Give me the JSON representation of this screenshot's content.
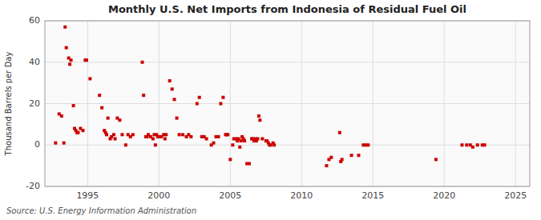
{
  "chart_data": {
    "type": "scatter",
    "title": "Monthly U.S. Net Imports from Indonesia of Residual Fuel Oil",
    "y_label": "Thousand Barrels per Day",
    "annotations": [
      "Source: U.S. Energy Information Administration"
    ],
    "color": "#cc0000",
    "marker": "square",
    "grid": true,
    "xlim": [
      1992.0,
      2026.0
    ],
    "ylim": [
      -20,
      60
    ],
    "xticks": [
      1995,
      2000,
      2005,
      2010,
      2015,
      2020,
      2025
    ],
    "yticks": [
      -20,
      0,
      20,
      40,
      60
    ],
    "x": [
      1992.75,
      1993.0,
      1993.17,
      1993.33,
      1993.42,
      1993.5,
      1993.67,
      1993.75,
      1993.83,
      1994.0,
      1994.08,
      1994.17,
      1994.25,
      1994.33,
      1994.5,
      1994.67,
      1994.83,
      1994.92,
      1995.17,
      1995.83,
      1996.0,
      1996.17,
      1996.25,
      1996.33,
      1996.42,
      1996.58,
      1996.67,
      1996.83,
      1996.92,
      1997.08,
      1997.25,
      1997.42,
      1997.67,
      1997.83,
      1998.0,
      1998.17,
      1998.83,
      1998.92,
      1999.08,
      1999.17,
      1999.25,
      1999.42,
      1999.58,
      1999.67,
      1999.75,
      1999.83,
      1999.92,
      2000.0,
      2000.17,
      2000.33,
      2000.42,
      2000.5,
      2000.75,
      2000.92,
      2001.08,
      2001.25,
      2001.42,
      2001.67,
      2001.92,
      2002.08,
      2002.25,
      2002.67,
      2002.83,
      2003.0,
      2003.17,
      2003.33,
      2003.67,
      2003.83,
      2004.0,
      2004.17,
      2004.33,
      2004.5,
      2004.67,
      2004.75,
      2004.83,
      2005.0,
      2005.17,
      2005.25,
      2005.42,
      2005.5,
      2005.58,
      2005.67,
      2005.75,
      2005.83,
      2005.92,
      2006.0,
      2006.17,
      2006.33,
      2006.5,
      2006.58,
      2006.67,
      2006.75,
      2006.83,
      2006.92,
      2007.0,
      2007.08,
      2007.25,
      2007.5,
      2007.58,
      2007.67,
      2007.75,
      2007.83,
      2008.0,
      2008.08,
      2011.75,
      2011.92,
      2012.08,
      2012.67,
      2012.75,
      2012.83,
      2013.5,
      2014.0,
      2014.33,
      2014.5,
      2014.67,
      2019.42,
      2021.25,
      2021.58,
      2021.83,
      2022.0,
      2022.33,
      2022.67,
      2022.83
    ],
    "values": [
      1,
      15,
      14,
      1,
      57,
      47,
      42,
      39,
      41,
      19,
      8,
      7,
      6,
      6,
      8,
      7,
      41,
      41,
      32,
      24,
      18,
      7,
      6,
      5,
      13,
      3,
      4,
      5,
      3,
      13,
      12,
      5,
      0,
      5,
      4,
      5,
      40,
      24,
      4,
      4,
      5,
      4,
      3,
      5,
      0,
      5,
      4,
      4,
      4,
      5,
      3,
      5,
      31,
      27,
      22,
      13,
      5,
      5,
      4,
      5,
      4,
      20,
      23,
      4,
      4,
      3,
      0,
      1,
      4,
      4,
      20,
      23,
      5,
      5,
      5,
      -7,
      0,
      3,
      3,
      2,
      3,
      -1,
      2,
      4,
      3,
      2,
      -9,
      -9,
      3,
      3,
      2,
      3,
      2,
      3,
      14,
      12,
      3,
      2,
      2,
      1,
      0,
      0,
      1,
      0,
      -10,
      -7,
      -6,
      6,
      -8,
      -7,
      -5,
      -5,
      0,
      0,
      0,
      -7,
      0,
      0,
      0,
      -1,
      0,
      0,
      0
    ]
  }
}
